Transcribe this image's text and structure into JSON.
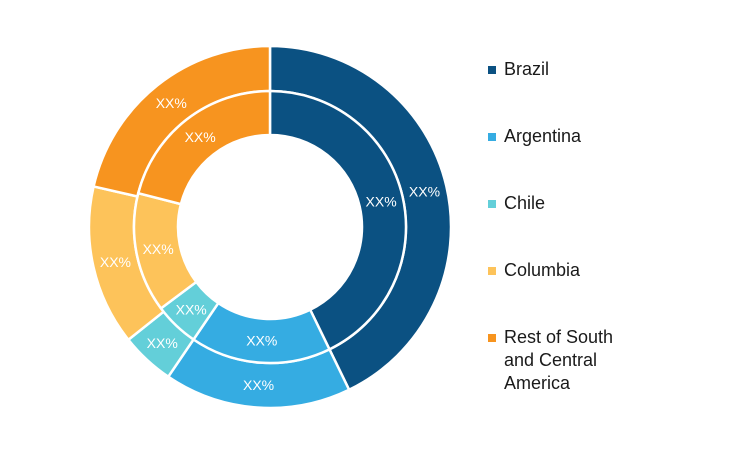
{
  "chart_data": {
    "type": "pie",
    "variant": "double-donut",
    "title": "",
    "categories": [
      "Brazil",
      "Argentina",
      "Chile",
      "Columbia",
      "Rest of South and Central America"
    ],
    "colors": [
      "#0b5182",
      "#35ace2",
      "#63cfd9",
      "#fdc35a",
      "#f7941f"
    ],
    "series": [
      {
        "ring": "outer",
        "values": [
          42.8,
          16.7,
          4.8,
          14.3,
          21.4
        ],
        "labels": [
          "XX%",
          "XX%",
          "XX%",
          "XX%",
          "XX%"
        ]
      },
      {
        "ring": "inner",
        "values": [
          42.8,
          16.7,
          5.3,
          14.2,
          21.0
        ],
        "labels": [
          "XX%",
          "XX%",
          "XX%",
          "XX%",
          "XX%"
        ]
      }
    ],
    "legend_position": "right"
  }
}
